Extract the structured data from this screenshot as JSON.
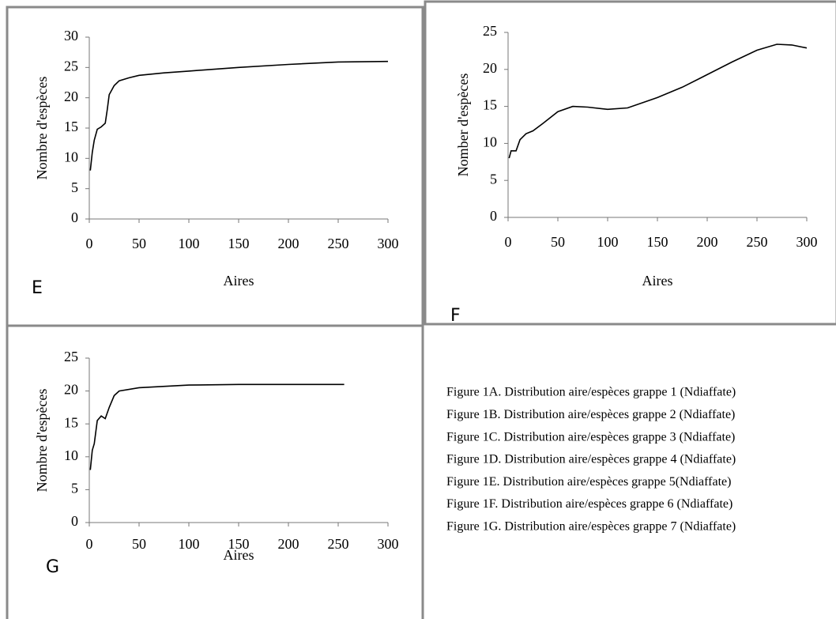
{
  "chart_data": [
    {
      "type": "line",
      "panel_label": "E",
      "xlabel": "Aires",
      "ylabel": "Nombre d'espèces",
      "color": "#000000",
      "x": [
        1,
        3,
        5,
        8,
        12,
        16,
        18,
        20,
        25,
        30,
        40,
        50,
        75,
        100,
        150,
        200,
        250,
        300
      ],
      "values": [
        8,
        11,
        13,
        14.8,
        15.2,
        15.8,
        18,
        20.5,
        22,
        22.8,
        23.3,
        23.7,
        24.1,
        24.4,
        25,
        25.5,
        25.9,
        26
      ],
      "xlim": [
        0,
        300
      ],
      "xticks": [
        0,
        50,
        100,
        150,
        200,
        250,
        300
      ],
      "ylim": [
        0,
        30
      ],
      "yticks": [
        0,
        5,
        10,
        15,
        20,
        25,
        30
      ]
    },
    {
      "type": "line",
      "panel_label": "F",
      "xlabel": "Aires",
      "ylabel": "Nomber d'espèces",
      "color": "#000000",
      "x": [
        1,
        3,
        8,
        12,
        18,
        25,
        35,
        50,
        65,
        80,
        100,
        120,
        150,
        175,
        200,
        225,
        250,
        270,
        285,
        300
      ],
      "values": [
        8,
        9,
        9,
        10.5,
        11.3,
        11.7,
        12.7,
        14.3,
        15,
        14.9,
        14.6,
        14.8,
        16.2,
        17.6,
        19.3,
        21,
        22.6,
        23.4,
        23.3,
        22.9
      ],
      "xlim": [
        0,
        300
      ],
      "xticks": [
        0,
        50,
        100,
        150,
        200,
        250,
        300
      ],
      "ylim": [
        0,
        25
      ],
      "yticks": [
        0,
        5,
        10,
        15,
        20,
        25
      ]
    },
    {
      "type": "line",
      "panel_label": "G",
      "xlabel": "Aires",
      "ylabel": "Nombre d'espèces",
      "color": "#000000",
      "x": [
        1,
        3,
        5,
        8,
        12,
        16,
        20,
        25,
        30,
        50,
        100,
        150,
        200,
        256
      ],
      "values": [
        8,
        11,
        12,
        15.5,
        16.2,
        15.8,
        17.5,
        19.3,
        20,
        20.5,
        20.9,
        21,
        21,
        21
      ],
      "xlim": [
        0,
        300
      ],
      "xticks": [
        0,
        50,
        100,
        150,
        200,
        250,
        300
      ],
      "ylim": [
        0,
        25
      ],
      "yticks": [
        0,
        5,
        10,
        15,
        20,
        25
      ]
    }
  ],
  "captions": [
    "Figure 1A. Distribution aire/espèces grappe 1 (Ndiaffate)",
    "Figure 1B. Distribution aire/espèces grappe 2 (Ndiaffate)",
    "Figure 1C. Distribution aire/espèces grappe 3 (Ndiaffate)",
    "Figure 1D. Distribution aire/espèces grappe 4 (Ndiaffate)",
    "Figure 1E. Distribution aire/espèces grappe 5(Ndiaffate)",
    "Figure 1F. Distribution aire/espèces grappe 6 (Ndiaffate)",
    "Figure 1G. Distribution aire/espèces grappe 7 (Ndiaffate)"
  ]
}
